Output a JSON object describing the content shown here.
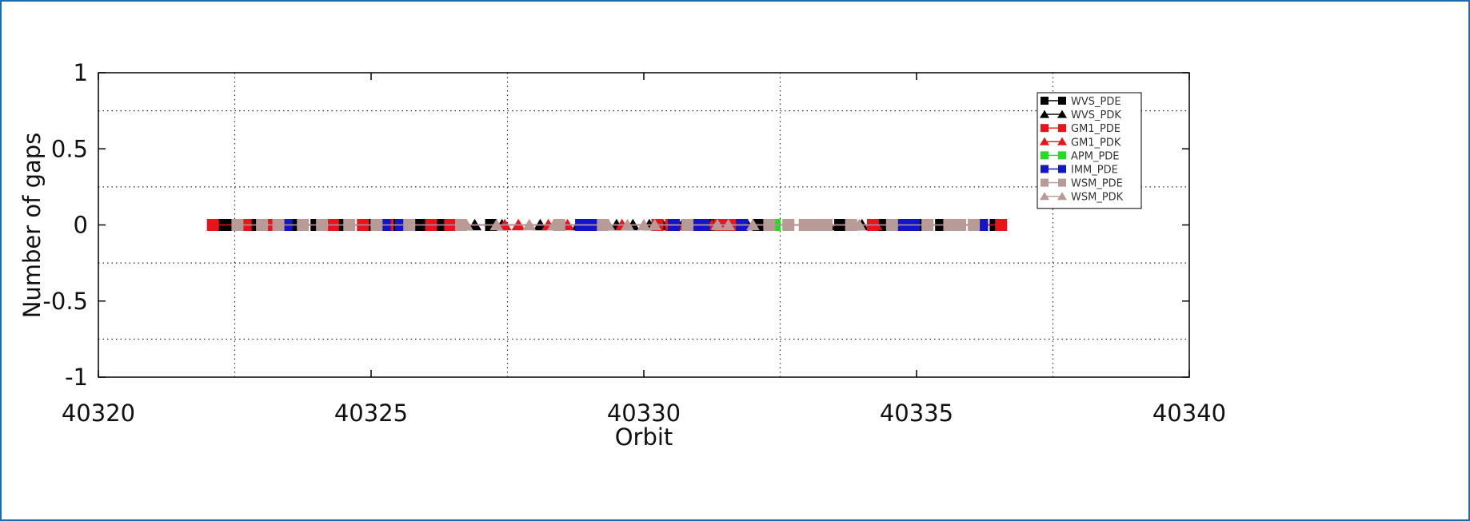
{
  "chart_data": {
    "type": "scatter",
    "title": "",
    "xlabel": "Orbit",
    "ylabel": "Number of gaps",
    "xlim": [
      40320,
      40340
    ],
    "ylim": [
      -1,
      1
    ],
    "x_ticks": [
      "40320",
      "40325",
      "40330",
      "40335",
      "40340"
    ],
    "y_ticks": [
      "1",
      "0.5",
      "0",
      "-0.5",
      "-1"
    ],
    "x_grid": [
      40322.5,
      40327.5,
      40332.5,
      40337.5
    ],
    "y_grid": [
      0.75,
      0.25,
      -0.25,
      -0.75
    ],
    "grid": true,
    "legend_position": "top-right",
    "series": [
      {
        "name": "WVS_PDE",
        "color": "#000000",
        "marker": "square",
        "x": [
          40322.25,
          40322.4,
          40322.9,
          40323.6,
          40324.0,
          40324.45,
          40324.95,
          40325.4,
          40325.9,
          40326.3,
          40327.2,
          40329.1,
          40331.2,
          40332.1,
          40333.6,
          40334.4,
          40335.05,
          40335.45,
          40336.2,
          40336.45
        ],
        "y": [
          0,
          0,
          0,
          0,
          0,
          0,
          0,
          0,
          0,
          0,
          0,
          0,
          0,
          0,
          0,
          0,
          0,
          0,
          0,
          0
        ]
      },
      {
        "name": "WVS_PDK",
        "color": "#000000",
        "marker": "triangle",
        "x": [
          40326.9,
          40327.4,
          40328.1,
          40328.8,
          40329.5,
          40329.8,
          40330.1,
          40330.35,
          40330.7,
          40331.3,
          40331.9,
          40333.4,
          40334.0,
          40334.3
        ],
        "y": [
          0,
          0,
          0,
          0,
          0,
          0,
          0,
          0,
          0,
          0,
          0,
          0,
          0,
          0
        ]
      },
      {
        "name": "GM1_PDE",
        "color": "#e8141a",
        "marker": "square",
        "x": [
          40322.1,
          40322.7,
          40323.15,
          40324.3,
          40324.85,
          40325.3,
          40326.1,
          40326.45,
          40330.25,
          40330.5,
          40331.4,
          40331.6,
          40334.2,
          40336.55
        ],
        "y": [
          0,
          0,
          0,
          0,
          0,
          0,
          0,
          0,
          0,
          0,
          0,
          0,
          0,
          0
        ]
      },
      {
        "name": "GM1_PDK",
        "color": "#e8141a",
        "marker": "triangle",
        "x": [
          40327.45,
          40327.7,
          40328.25,
          40328.6,
          40329.6,
          40330.6,
          40331.25,
          40331.65,
          40334.25
        ],
        "y": [
          0,
          0,
          0,
          0,
          0,
          0,
          0,
          0,
          0
        ]
      },
      {
        "name": "APM_PDE",
        "color": "#22dd22",
        "marker": "square",
        "x": [
          40332.4
        ],
        "y": [
          0
        ]
      },
      {
        "name": "IMM_PDE",
        "color": "#1414c8",
        "marker": "square",
        "x": [
          40323.45,
          40325.25,
          40325.55,
          40328.85,
          40329.05,
          40330.55,
          40330.95,
          40331.1,
          40331.8,
          40334.75,
          40334.95,
          40336.2
        ],
        "y": [
          0,
          0,
          0,
          0,
          0,
          0,
          0,
          0,
          0,
          0,
          0,
          0
        ]
      },
      {
        "name": "WSM_PDE",
        "color": "#b89a96",
        "marker": "square",
        "x": [
          40322.55,
          40323.0,
          40323.3,
          40323.75,
          40324.1,
          40324.6,
          40325.1,
          40325.7,
          40326.65,
          40328.45,
          40329.25,
          40330.8,
          40332.3,
          40332.65,
          40332.95,
          40333.15,
          40333.35,
          40333.8,
          40334.55,
          40335.2,
          40335.6,
          40335.8,
          40336.05
        ],
        "y": [
          0,
          0,
          0,
          0,
          0,
          0,
          0,
          0,
          0,
          0,
          0,
          0,
          0,
          0,
          0,
          0,
          0,
          0,
          0,
          0,
          0,
          0,
          0
        ]
      },
      {
        "name": "WSM_PDK",
        "color": "#b89a96",
        "marker": "triangle",
        "x": [
          40326.75,
          40327.3,
          40327.9,
          40328.35,
          40329.35,
          40329.7,
          40330.0,
          40330.2,
          40331.35,
          40331.55,
          40332.0,
          40333.95
        ],
        "y": [
          0,
          0,
          0,
          0,
          0,
          0,
          0,
          0,
          0,
          0,
          0,
          0
        ]
      }
    ]
  }
}
